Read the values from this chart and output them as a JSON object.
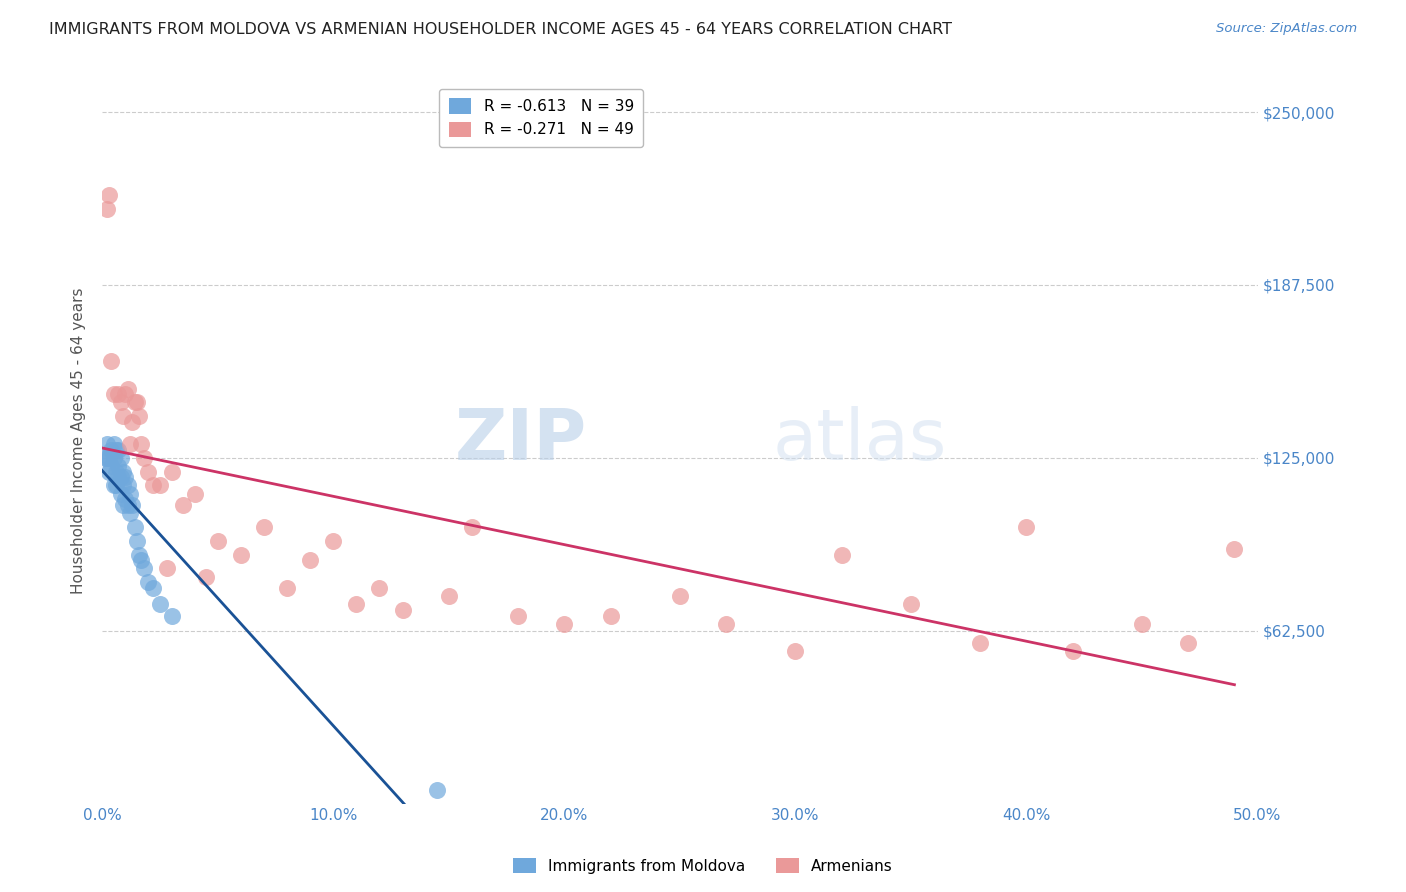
{
  "title": "IMMIGRANTS FROM MOLDOVA VS ARMENIAN HOUSEHOLDER INCOME AGES 45 - 64 YEARS CORRELATION CHART",
  "source": "Source: ZipAtlas.com",
  "ylabel": "Householder Income Ages 45 - 64 years",
  "xlabel_ticks": [
    "0.0%",
    "10.0%",
    "20.0%",
    "30.0%",
    "40.0%",
    "50.0%"
  ],
  "xlabel_vals": [
    0.0,
    0.1,
    0.2,
    0.3,
    0.4,
    0.5
  ],
  "ytick_labels": [
    "$62,500",
    "$125,000",
    "$187,500",
    "$250,000"
  ],
  "ytick_vals": [
    62500,
    125000,
    187500,
    250000
  ],
  "ylim": [
    0,
    262500
  ],
  "xlim": [
    0.0,
    0.5
  ],
  "legend_blue_r": "R = -0.613",
  "legend_blue_n": "N = 39",
  "legend_pink_r": "R = -0.271",
  "legend_pink_n": "N = 49",
  "blue_color": "#6fa8dc",
  "pink_color": "#ea9999",
  "blue_line_color": "#1a5296",
  "pink_line_color": "#cc3366",
  "watermark_zip": "ZIP",
  "watermark_atlas": "atlas",
  "background_color": "#ffffff",
  "grid_color": "#cccccc",
  "title_color": "#222222",
  "tick_label_color": "#4a86c8",
  "legend_label_blue": "Immigrants from Moldova",
  "legend_label_pink": "Armenians",
  "blue_x": [
    0.001,
    0.002,
    0.002,
    0.003,
    0.003,
    0.004,
    0.004,
    0.005,
    0.005,
    0.005,
    0.006,
    0.006,
    0.006,
    0.007,
    0.007,
    0.007,
    0.008,
    0.008,
    0.008,
    0.009,
    0.009,
    0.009,
    0.01,
    0.01,
    0.011,
    0.011,
    0.012,
    0.012,
    0.013,
    0.014,
    0.015,
    0.016,
    0.017,
    0.018,
    0.02,
    0.022,
    0.025,
    0.03,
    0.145
  ],
  "blue_y": [
    125000,
    130000,
    125000,
    125000,
    120000,
    128000,
    122000,
    130000,
    125000,
    115000,
    128000,
    120000,
    115000,
    128000,
    122000,
    118000,
    125000,
    118000,
    112000,
    120000,
    115000,
    108000,
    118000,
    110000,
    115000,
    108000,
    112000,
    105000,
    108000,
    100000,
    95000,
    90000,
    88000,
    85000,
    80000,
    78000,
    72000,
    68000,
    5000
  ],
  "pink_x": [
    0.002,
    0.003,
    0.004,
    0.005,
    0.007,
    0.008,
    0.009,
    0.01,
    0.011,
    0.012,
    0.013,
    0.014,
    0.015,
    0.016,
    0.017,
    0.018,
    0.02,
    0.022,
    0.025,
    0.028,
    0.03,
    0.035,
    0.04,
    0.045,
    0.05,
    0.06,
    0.07,
    0.08,
    0.09,
    0.1,
    0.11,
    0.12,
    0.13,
    0.15,
    0.16,
    0.18,
    0.2,
    0.22,
    0.25,
    0.27,
    0.3,
    0.32,
    0.35,
    0.38,
    0.4,
    0.42,
    0.45,
    0.47,
    0.49
  ],
  "pink_y": [
    215000,
    220000,
    160000,
    148000,
    148000,
    145000,
    140000,
    148000,
    150000,
    130000,
    138000,
    145000,
    145000,
    140000,
    130000,
    125000,
    120000,
    115000,
    115000,
    85000,
    120000,
    108000,
    112000,
    82000,
    95000,
    90000,
    100000,
    78000,
    88000,
    95000,
    72000,
    78000,
    70000,
    75000,
    100000,
    68000,
    65000,
    68000,
    75000,
    65000,
    55000,
    90000,
    72000,
    58000,
    100000,
    55000,
    65000,
    58000,
    92000
  ]
}
